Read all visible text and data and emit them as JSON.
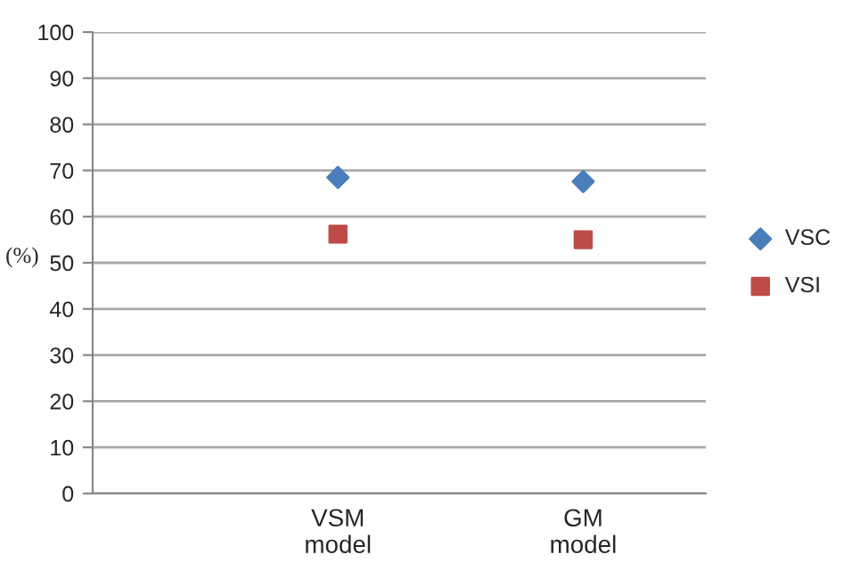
{
  "chart_data": {
    "type": "scatter",
    "ylabel": "(%)",
    "categories": [
      "VSM\nmodel",
      "GM\nmodel"
    ],
    "series": [
      {
        "name": "VSC",
        "color": "#4a7ebb",
        "marker": "diamond",
        "values": [
          68.5,
          67.6
        ]
      },
      {
        "name": "VSI",
        "color": "#be4b48",
        "marker": "square",
        "values": [
          56.2,
          55.0
        ]
      }
    ],
    "ylim": [
      0,
      100
    ],
    "yticks": [
      0,
      10,
      20,
      30,
      40,
      50,
      60,
      70,
      80,
      90,
      100
    ],
    "grid": "y",
    "legend": "right"
  }
}
